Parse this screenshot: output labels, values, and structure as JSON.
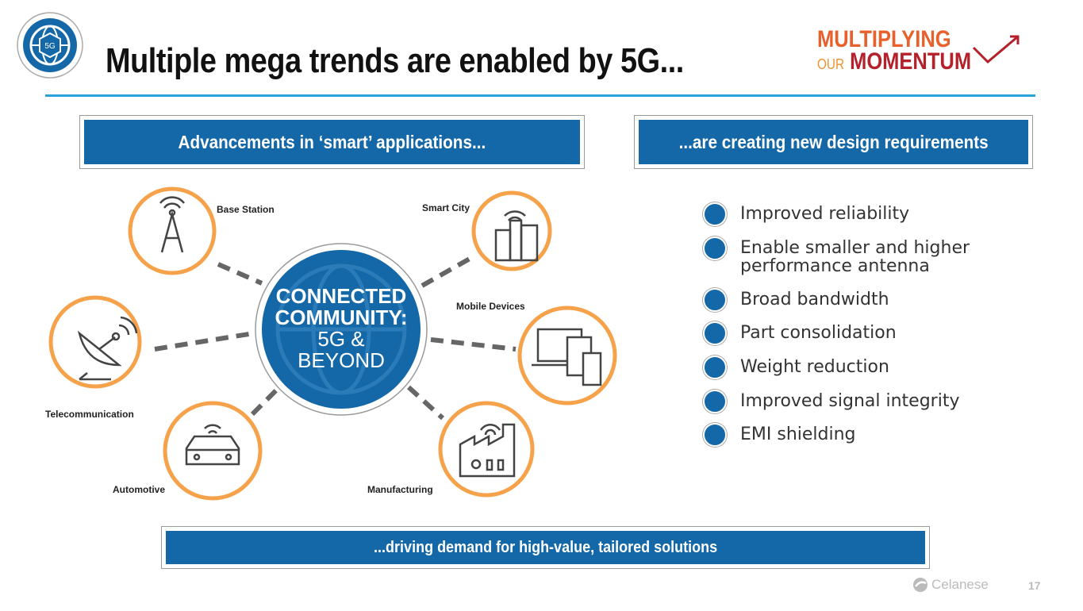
{
  "header": {
    "title": "Multiple mega trends are enabled by 5G...",
    "badge_text": "5G",
    "brand_line1": "MULTIPLYING",
    "brand_line2a": "OUR",
    "brand_line2b": "MOMENTUM"
  },
  "boxes": {
    "left": "Advancements in ‘smart’ applications...",
    "right": "...are creating new design requirements",
    "bottom": "...driving demand for high-value, tailored solutions"
  },
  "center": {
    "line1": "CONNECTED",
    "line2": "COMMUNITY:",
    "line3": "5G &",
    "line4": "BEYOND"
  },
  "applications": [
    "Base Station",
    "Smart City",
    "Mobile Devices",
    "Telecommunication",
    "Automotive",
    "Manufacturing"
  ],
  "requirements": [
    "Improved reliability",
    "Enable smaller and higher performance antenna",
    "Broad bandwidth",
    "Part consolidation",
    "Weight reduction",
    "Improved signal integrity",
    "EMI shielding"
  ],
  "footer": {
    "company": "Celanese",
    "page": "17"
  },
  "colors": {
    "blue": "#1468a8",
    "orange": "#f5a24a",
    "rule": "#29a3dc"
  }
}
